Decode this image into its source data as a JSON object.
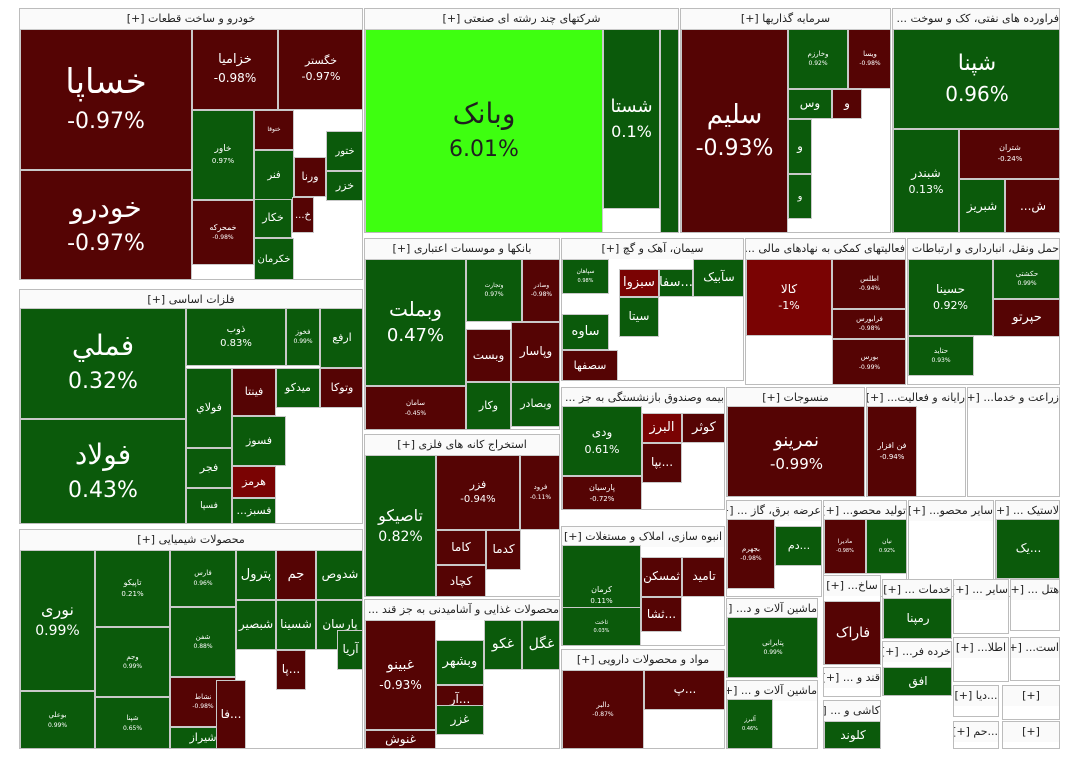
{
  "sectors": [
    {
      "name": "خودرو و ساخت قطعات [+]",
      "tiles": [
        {
          "n": "خساپا",
          "p": "-0.97%",
          "c": "r"
        },
        {
          "n": "خودرو",
          "p": "-0.97%",
          "c": "r"
        },
        {
          "n": "خزامیا",
          "p": "-0.98%",
          "c": "r"
        },
        {
          "n": "خگستر",
          "p": "-0.97%",
          "c": "r"
        },
        {
          "n": "خاور",
          "p": "0.97%",
          "c": "g"
        },
        {
          "n": "ختوقا",
          "p": "",
          "c": "r"
        },
        {
          "n": "ختور",
          "p": "",
          "c": "g"
        },
        {
          "n": "فنر",
          "p": "",
          "c": "g"
        },
        {
          "n": "ورنا",
          "p": "",
          "c": "r"
        },
        {
          "n": "خزر",
          "p": "",
          "c": "g"
        },
        {
          "n": "خکار",
          "p": "",
          "c": "g"
        },
        {
          "n": "خ...",
          "p": "",
          "c": "r"
        },
        {
          "n": "خمحرکه",
          "p": "-0.98%",
          "c": "r"
        },
        {
          "n": "خکرمان",
          "p": "",
          "c": "g"
        }
      ]
    },
    {
      "name": "شرکتهای چند رشته ای صنعتی [+]",
      "tiles": [
        {
          "n": "وبانک",
          "p": "6.01%",
          "c": "br"
        },
        {
          "n": "شستا",
          "p": "0.1%",
          "c": "g"
        },
        {
          "n": "",
          "p": "",
          "c": "g"
        }
      ]
    },
    {
      "name": "سرمایه گذاریها [+]",
      "tiles": [
        {
          "n": "سلیم",
          "p": "-0.93%",
          "c": "r"
        },
        {
          "n": "وخارزم",
          "p": "0.92%",
          "c": "g"
        },
        {
          "n": "ویسا",
          "p": "-0.98%",
          "c": "r"
        },
        {
          "n": "وس",
          "p": "",
          "c": "g"
        },
        {
          "n": "و",
          "p": "",
          "c": "r"
        },
        {
          "n": "و",
          "p": "",
          "c": "g"
        },
        {
          "n": "و",
          "p": "",
          "c": "g"
        }
      ]
    },
    {
      "name": "فراورده های نفتی، کک و سوخت ... [+]",
      "tiles": [
        {
          "n": "شپنا",
          "p": "0.96%",
          "c": "g"
        },
        {
          "n": "شبندر",
          "p": "0.13%",
          "c": "g"
        },
        {
          "n": "شتران",
          "p": "-0.24%",
          "c": "r"
        },
        {
          "n": "شبریز",
          "p": "",
          "c": "g"
        },
        {
          "n": "ش...",
          "p": "",
          "c": "r"
        }
      ]
    },
    {
      "name": "فلزات اساسی [+]",
      "tiles": [
        {
          "n": "فملي",
          "p": "0.32%",
          "c": "g"
        },
        {
          "n": "فولاد",
          "p": "0.43%",
          "c": "g"
        },
        {
          "n": "ذوب",
          "p": "0.83%",
          "c": "g"
        },
        {
          "n": "فخوز",
          "p": "0.99%",
          "c": "g"
        },
        {
          "n": "ارفع",
          "p": "",
          "c": "g"
        },
        {
          "n": "وتوکا",
          "p": "",
          "c": "r"
        },
        {
          "n": "میدکو",
          "p": "",
          "c": "g"
        },
        {
          "n": "فینتا",
          "p": "",
          "c": "r"
        },
        {
          "n": "فولاي",
          "p": "",
          "c": "g"
        },
        {
          "n": "فسوز",
          "p": "",
          "c": "g"
        },
        {
          "n": "فجر",
          "p": "",
          "c": "g"
        },
        {
          "n": "هرمز",
          "p": "",
          "c": "rr"
        },
        {
          "n": "فسپا",
          "p": "",
          "c": "g"
        },
        {
          "n": "فسبز...",
          "p": "",
          "c": "g"
        }
      ]
    },
    {
      "name": "بانکها و موسسات اعتباری [+]",
      "tiles": [
        {
          "n": "وبملت",
          "p": "0.47%",
          "c": "g"
        },
        {
          "n": "وتجارت",
          "p": "0.97%",
          "c": "g"
        },
        {
          "n": "وصادر",
          "p": "-0.98%",
          "c": "r"
        },
        {
          "n": "وپاسار",
          "p": "",
          "c": "r"
        },
        {
          "n": "وبست",
          "p": "",
          "c": "r"
        },
        {
          "n": "وبصادر",
          "p": "",
          "c": "g"
        },
        {
          "n": "وکار",
          "p": "",
          "c": "g"
        },
        {
          "n": "سامان",
          "p": "-0.45%",
          "c": "r"
        }
      ]
    },
    {
      "name": "سیمان، آهک و گچ [+]",
      "tiles": [
        {
          "n": "سپاهان",
          "p": "0.98%",
          "c": "g"
        },
        {
          "n": "سبزوا",
          "p": "",
          "c": "rr"
        },
        {
          "n": "...سفا",
          "p": "",
          "c": "g"
        },
        {
          "n": "سآبیک",
          "p": "",
          "c": "g"
        },
        {
          "n": "سیتا",
          "p": "",
          "c": "g"
        },
        {
          "n": "ساوه",
          "p": "",
          "c": "g"
        },
        {
          "n": "سصفها",
          "p": "",
          "c": "r"
        }
      ]
    },
    {
      "name": "فعالیتهای کمکی به نهادهای مالی ... [+]",
      "tiles": [
        {
          "n": "کالا",
          "p": "-1%",
          "c": "rr"
        },
        {
          "n": "اطلس",
          "p": "-0.94%",
          "c": "r"
        },
        {
          "n": "فرابورس",
          "p": "-0.98%",
          "c": "r"
        },
        {
          "n": "بورس",
          "p": "-0.99%",
          "c": "r"
        }
      ]
    },
    {
      "name": "حمل ونقل، انبارداری و ارتباطات [+]",
      "tiles": [
        {
          "n": "حسینا",
          "p": "0.92%",
          "c": "g"
        },
        {
          "n": "حکشتی",
          "p": "0.99%",
          "c": "g"
        },
        {
          "n": "حپرتو",
          "p": "",
          "c": "r"
        },
        {
          "n": "حتاید",
          "p": "0.93%",
          "c": "g"
        }
      ]
    },
    {
      "name": "بیمه وصندوق بازنشستگی به جز ... [+]",
      "tiles": [
        {
          "n": "ودی",
          "p": "0.61%",
          "c": "g"
        },
        {
          "n": "البرز",
          "p": "",
          "c": "rr"
        },
        {
          "n": "کوثر",
          "p": "",
          "c": "r"
        },
        {
          "n": "...بپا",
          "p": "",
          "c": "r"
        },
        {
          "n": "پارسیان",
          "p": "-0.72%",
          "c": "r"
        }
      ]
    },
    {
      "name": "منسوجات [+]",
      "tiles": [
        {
          "n": "نمرینو",
          "p": "-0.99%",
          "c": "r"
        }
      ]
    },
    {
      "name": "رایانه و فعالیت... [+]",
      "tiles": [
        {
          "n": "فن افزار",
          "p": "-0.94%",
          "c": "r"
        }
      ]
    },
    {
      "name": "زراعت و خدما... [+]",
      "tiles": []
    },
    {
      "name": "استخراج کانه های فلزی [+]",
      "tiles": [
        {
          "n": "تاصیکو",
          "p": "0.82%",
          "c": "g"
        },
        {
          "n": "فزر",
          "p": "-0.94%",
          "c": "r"
        },
        {
          "n": "فرود",
          "p": "-0.11%",
          "c": "r"
        },
        {
          "n": "کاما",
          "p": "",
          "c": "r"
        },
        {
          "n": "کدما",
          "p": "",
          "c": "r"
        },
        {
          "n": "کچاد",
          "p": "",
          "c": "r"
        }
      ]
    },
    {
      "name": "محصولات شیمیایی [+]",
      "tiles": [
        {
          "n": "نوری",
          "p": "0.99%",
          "c": "g"
        },
        {
          "n": "تاپیکو",
          "p": "0.21%",
          "c": "g"
        },
        {
          "n": "فارس",
          "p": "0.96%",
          "c": "g"
        },
        {
          "n": "شدوص",
          "p": "",
          "c": "g"
        },
        {
          "n": "جم",
          "p": "",
          "c": "r"
        },
        {
          "n": "پترول",
          "p": "",
          "c": "g"
        },
        {
          "n": "پارسان",
          "p": "",
          "c": "g"
        },
        {
          "n": "شسینا",
          "p": "",
          "c": "g"
        },
        {
          "n": "شبصیر",
          "p": "",
          "c": "g"
        },
        {
          "n": "آریا",
          "p": "",
          "c": "g"
        },
        {
          "n": "...پا",
          "p": "",
          "c": "r"
        },
        {
          "n": "وجم",
          "p": "0.99%",
          "c": "g"
        },
        {
          "n": "شفن",
          "p": "0.88%",
          "c": "g"
        },
        {
          "n": "نشاط",
          "p": "-0.98%",
          "c": "r"
        },
        {
          "n": "بوعلي",
          "p": "0.99%",
          "c": "g"
        },
        {
          "n": "شپنا",
          "p": "0.65%",
          "c": "g"
        },
        {
          "n": "شیراز",
          "p": "",
          "c": "g"
        },
        {
          "n": "...فا",
          "p": "",
          "c": "r"
        }
      ]
    },
    {
      "name": "انبوه سازی، املاک و مستغلات [+]",
      "tiles": [
        {
          "n": "کرمان",
          "p": "0.11%",
          "c": "g"
        },
        {
          "n": "تامید",
          "p": "",
          "c": "r"
        },
        {
          "n": "ثمسکن",
          "p": "",
          "c": "r"
        },
        {
          "n": "...ثشا",
          "p": "",
          "c": "r"
        },
        {
          "n": "ثاخت",
          "p": "0.03%",
          "c": "g"
        }
      ]
    },
    {
      "name": "عرضه برق، گاز ... [+]",
      "tiles": [
        {
          "n": "بجهرم",
          "p": "-0.98%",
          "c": "r"
        },
        {
          "n": "...دم",
          "p": "",
          "c": "g"
        }
      ]
    },
    {
      "name": "تولید محصو... [+]",
      "tiles": [
        {
          "n": "مادیرا",
          "p": "-0.98%",
          "c": "r"
        },
        {
          "n": "نیان",
          "p": "0.92%",
          "c": "g"
        }
      ]
    },
    {
      "name": "سایر محصو... [+]",
      "tiles": []
    },
    {
      "name": "لاستیک ... [+]",
      "tiles": [
        {
          "n": "...یک",
          "p": "",
          "c": "g"
        }
      ]
    },
    {
      "name": "محصولات غذایی و آشامیدنی به جز قند ... [+]",
      "tiles": [
        {
          "n": "غبینو",
          "p": "-0.93%",
          "c": "r"
        },
        {
          "n": "غگل",
          "p": "",
          "c": "g"
        },
        {
          "n": "غکو",
          "p": "",
          "c": "g"
        },
        {
          "n": "وبشهر",
          "p": "",
          "c": "g"
        },
        {
          "n": "...آر",
          "p": "",
          "c": "r"
        },
        {
          "n": "غزر",
          "p": "",
          "c": "g"
        },
        {
          "n": "غنوش",
          "p": "",
          "c": "r"
        }
      ]
    },
    {
      "name": "مواد و محصولات دارویی [+]",
      "tiles": [
        {
          "n": "دالبر",
          "p": "-0.87%",
          "c": "r"
        },
        {
          "n": "...پ",
          "p": "",
          "c": "r"
        }
      ]
    },
    {
      "name": "ماشین آلات و د... [+]",
      "tiles": [
        {
          "n": "پتایرانی",
          "p": "0.99%",
          "c": "g"
        }
      ]
    },
    {
      "name": "ماشین آلات و ... [+]",
      "tiles": [
        {
          "n": "آلبرز",
          "p": "0.46%",
          "c": "g"
        }
      ]
    },
    {
      "name": "ساخ... [+]",
      "tiles": [
        {
          "n": "فاراک",
          "p": "",
          "c": "r"
        }
      ]
    },
    {
      "name": "قند و ... [+]",
      "tiles": []
    },
    {
      "name": "کاشی و ... [+]",
      "tiles": [
        {
          "n": "کلوند",
          "p": "",
          "c": "g"
        }
      ]
    },
    {
      "name": "خدمات ... [+]",
      "tiles": [
        {
          "n": "رمپنا",
          "p": "",
          "c": "g"
        }
      ]
    },
    {
      "name": "سایر ... [+]",
      "tiles": []
    },
    {
      "name": "هتل ... [+]",
      "tiles": []
    },
    {
      "name": "خرده فر... [+]",
      "tiles": [
        {
          "n": "افق",
          "p": "",
          "c": "g"
        }
      ]
    },
    {
      "name": "اطلا... [+]",
      "tiles": []
    },
    {
      "name": "است... [+]",
      "tiles": []
    },
    {
      "name": "...دیا [+]",
      "tiles": []
    },
    {
      "name": "[+]",
      "tiles": []
    },
    {
      "name": "...حم [+]",
      "tiles": []
    },
    {
      "name": "[+]",
      "tiles": []
    }
  ]
}
